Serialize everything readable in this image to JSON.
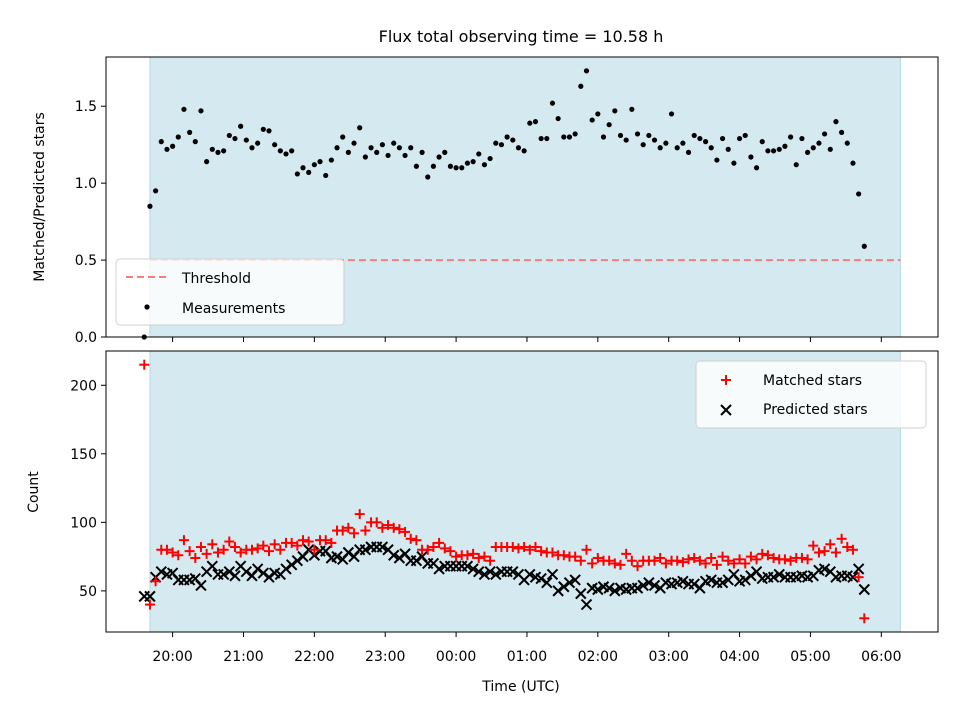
{
  "title": "Flux total observing time = 10.58 h",
  "colors": {
    "shade": "#d4eaf0",
    "threshold": "#f08080",
    "measure": "#000000",
    "matched": "#ff0000",
    "predicted": "#000000"
  },
  "chart_data": [
    {
      "type": "scatter",
      "ylabel": "Matched/Predicted stars",
      "ylim": [
        0,
        1.82
      ],
      "yticks": [
        0.0,
        0.5,
        1.0,
        1.5
      ],
      "ytick_labels": [
        "0.0",
        "0.5",
        "1.0",
        "1.5"
      ],
      "shaded_span_hours": [
        19.68,
        30.27
      ],
      "legend": {
        "placement": "lower-left",
        "entries": [
          "Threshold",
          "Measurements"
        ]
      },
      "threshold": {
        "name": "Threshold",
        "value": 0.5
      },
      "measurements": {
        "name": "Measurements",
        "x_start_hours": 19.6,
        "x_step_hours": 0.08,
        "values": [
          0.0,
          0.85,
          0.95,
          1.27,
          1.22,
          1.24,
          1.3,
          1.48,
          1.33,
          1.27,
          1.47,
          1.14,
          1.22,
          1.2,
          1.21,
          1.31,
          1.29,
          1.37,
          1.28,
          1.23,
          1.26,
          1.35,
          1.34,
          1.25,
          1.21,
          1.19,
          1.21,
          1.06,
          1.1,
          1.07,
          1.12,
          1.14,
          1.05,
          1.15,
          1.23,
          1.3,
          1.2,
          1.26,
          1.36,
          1.17,
          1.23,
          1.2,
          1.25,
          1.18,
          1.26,
          1.23,
          1.18,
          1.23,
          1.11,
          1.2,
          1.04,
          1.11,
          1.17,
          1.2,
          1.11,
          1.1,
          1.1,
          1.13,
          1.14,
          1.19,
          1.12,
          1.16,
          1.26,
          1.25,
          1.3,
          1.28,
          1.23,
          1.21,
          1.39,
          1.4,
          1.29,
          1.29,
          1.52,
          1.42,
          1.3,
          1.3,
          1.32,
          1.63,
          1.73,
          1.41,
          1.45,
          1.3,
          1.38,
          1.47,
          1.31,
          1.28,
          1.48,
          1.32,
          1.25,
          1.31,
          1.28,
          1.23,
          1.26,
          1.45,
          1.23,
          1.26,
          1.2,
          1.31,
          1.29,
          1.27,
          1.23,
          1.15,
          1.29,
          1.22,
          1.13,
          1.29,
          1.31,
          1.17,
          1.1,
          1.27,
          1.21,
          1.21,
          1.22,
          1.24,
          1.3,
          1.12,
          1.29,
          1.2,
          1.23,
          1.26,
          1.32,
          1.22,
          1.4,
          1.33,
          1.26,
          1.13,
          0.93,
          0.59
        ]
      }
    },
    {
      "type": "scatter",
      "xlabel": "Time (UTC)",
      "ylabel": "Count",
      "ylim": [
        20,
        225
      ],
      "yticks": [
        50,
        100,
        150,
        200
      ],
      "ytick_labels": [
        "50",
        "100",
        "150",
        "200"
      ],
      "xlim_hours": [
        19.06,
        30.8
      ],
      "xticks_hours": [
        20,
        21,
        22,
        23,
        24,
        25,
        26,
        27,
        28,
        29,
        30
      ],
      "xtick_labels": [
        "20:00",
        "21:00",
        "22:00",
        "23:00",
        "00:00",
        "01:00",
        "02:00",
        "03:00",
        "04:00",
        "05:00",
        "06:00"
      ],
      "shaded_span_hours": [
        19.68,
        30.27
      ],
      "legend": {
        "placement": "top-right",
        "entries": [
          "Matched stars",
          "Predicted stars"
        ]
      },
      "x_start_hours": 19.6,
      "x_step_hours": 0.08,
      "series": [
        {
          "name": "Matched stars",
          "marker": "plus",
          "values": [
            215,
            40,
            57,
            80,
            80,
            78,
            76,
            87,
            79,
            74,
            82,
            77,
            84,
            78,
            80,
            86,
            82,
            78,
            80,
            80,
            81,
            83,
            79,
            84,
            80,
            85,
            85,
            83,
            87,
            86,
            80,
            87,
            87,
            85,
            94,
            94,
            96,
            92,
            106,
            94,
            100,
            100,
            96,
            98,
            96,
            95,
            93,
            88,
            87,
            80,
            80,
            82,
            85,
            81,
            79,
            75,
            76,
            76,
            77,
            74,
            75,
            72,
            82,
            82,
            82,
            82,
            81,
            82,
            80,
            82,
            79,
            78,
            78,
            76,
            76,
            75,
            75,
            72,
            80,
            70,
            74,
            72,
            72,
            70,
            69,
            77,
            72,
            68,
            72,
            72,
            72,
            74,
            70,
            72,
            72,
            71,
            73,
            74,
            72,
            70,
            74,
            69,
            75,
            72,
            70,
            73,
            70,
            75,
            73,
            77,
            76,
            74,
            73,
            73,
            72,
            74,
            74,
            73,
            83,
            78,
            79,
            84,
            78,
            88,
            82,
            80,
            60,
            30
          ]
        },
        {
          "name": "Predicted stars",
          "marker": "x",
          "values": [
            46,
            46,
            60,
            64,
            62,
            63,
            58,
            58,
            58,
            59,
            54,
            64,
            68,
            62,
            62,
            64,
            61,
            68,
            64,
            61,
            66,
            63,
            60,
            63,
            62,
            66,
            69,
            72,
            75,
            80,
            76,
            79,
            79,
            74,
            75,
            73,
            78,
            75,
            80,
            80,
            82,
            82,
            82,
            80,
            76,
            74,
            77,
            72,
            72,
            75,
            70,
            70,
            66,
            68,
            68,
            68,
            68,
            68,
            66,
            64,
            62,
            64,
            62,
            64,
            64,
            64,
            62,
            58,
            62,
            60,
            59,
            56,
            62,
            50,
            53,
            56,
            58,
            48,
            40,
            52,
            51,
            53,
            52,
            50,
            52,
            51,
            52,
            52,
            54,
            56,
            54,
            52,
            56,
            55,
            56,
            57,
            55,
            55,
            52,
            57,
            58,
            56,
            56,
            58,
            62,
            57,
            58,
            61,
            64,
            59,
            60,
            60,
            62,
            60,
            60,
            60,
            61,
            60,
            61,
            65,
            66,
            64,
            60,
            61,
            61,
            60,
            66,
            51
          ]
        }
      ]
    }
  ]
}
